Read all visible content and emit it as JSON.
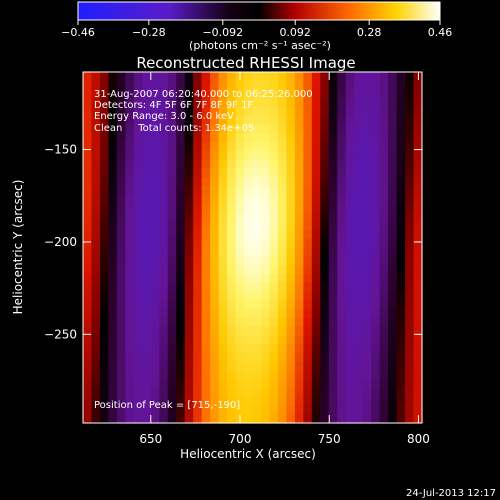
{
  "chart_data": {
    "type": "heatmap",
    "title": "Reconstructed RHESSI Image",
    "xlabel": "Heliocentric X (arcsec)",
    "ylabel": "Heliocentric Y (arcsec)",
    "xlim": [
      612,
      802
    ],
    "ylim": [
      -298,
      -108
    ],
    "x_ticks": [
      650,
      700,
      750,
      800
    ],
    "x_tick_labels": [
      "650",
      "700",
      "750",
      "800"
    ],
    "y_ticks": [
      -150,
      -200,
      -250
    ],
    "y_tick_labels": [
      "−150",
      "−200",
      "−250"
    ],
    "colorbar": {
      "range": [
        -0.46,
        0.46
      ],
      "ticks": [
        -0.46,
        -0.28,
        -0.092,
        0.092,
        0.28,
        0.46
      ],
      "tick_labels": [
        "−0.46",
        "−0.28",
        "−0.092",
        "0.092",
        "0.28",
        "0.46"
      ],
      "unit_label": "(photons cm⁻² s⁻¹ asec⁻²)"
    },
    "annotations": [
      "31-Aug-2007 06:20:40.000 to 06:25:26.000",
      "Detectors: 4F 5F 6F 7F 8F 9F 1F",
      "Energy Range: 3.0 - 6.0 keV",
      "Clean     Total counts: 1.34e+05"
    ],
    "peak_label": "Position of Peak = [715,-190]",
    "peak": {
      "x": 715,
      "y": -190
    },
    "map_model": {
      "ridge_x_at_top": 712,
      "ridge_x_at_bottom": 704,
      "ridge_width_arcsec": 34,
      "fringe_period_arcsec": 110,
      "peak_value": 0.46
    },
    "timestamp": "24-Jul-2013 12:17"
  }
}
